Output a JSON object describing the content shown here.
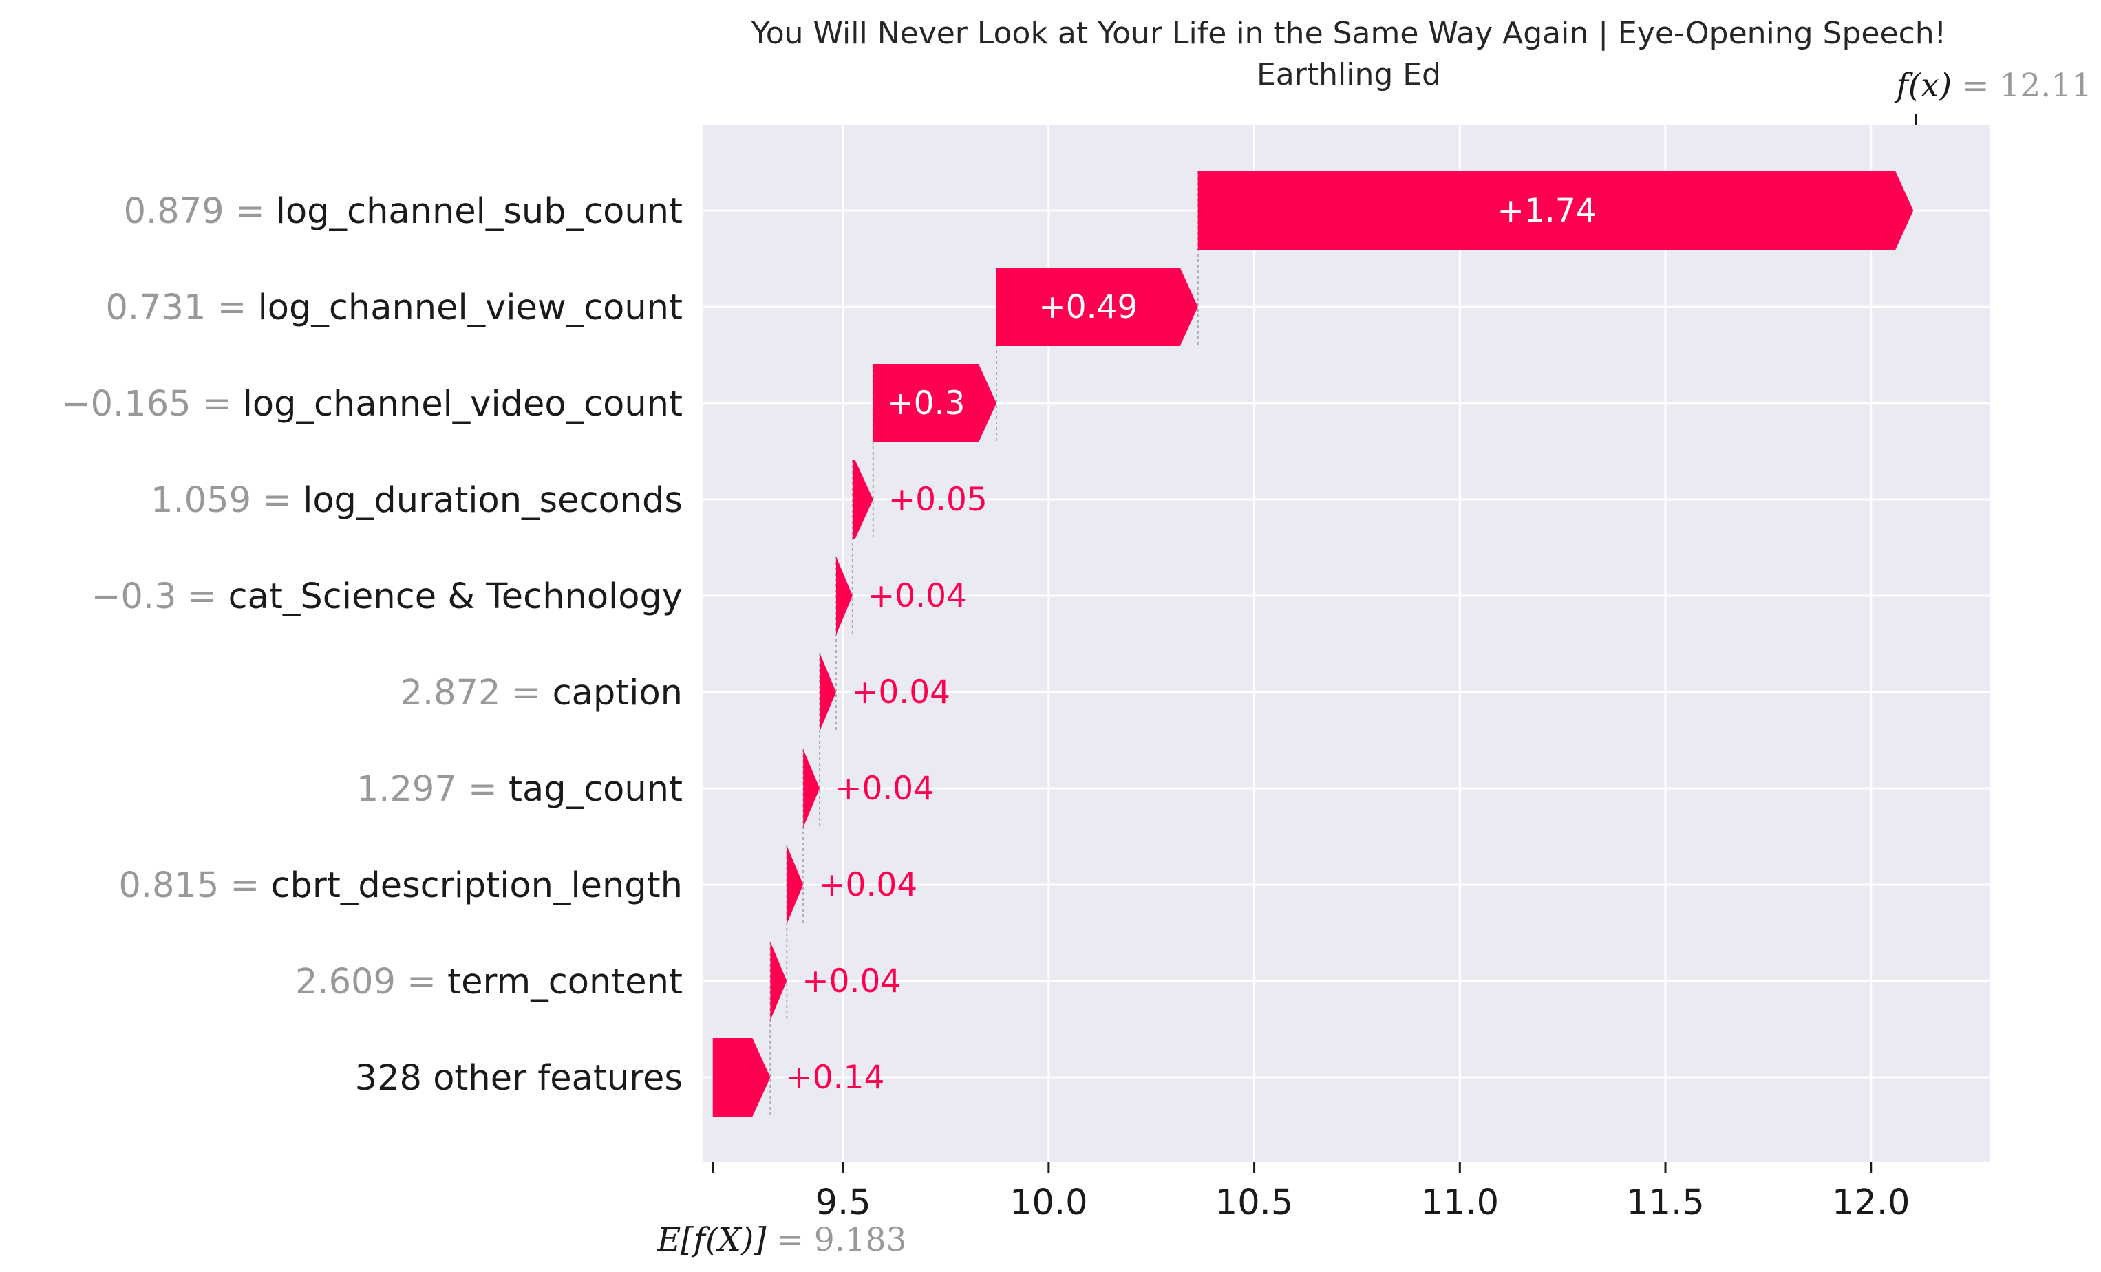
{
  "chart_data": {
    "type": "waterfall",
    "title_line1": "You Will Never Look at Your Life in the Same Way Again | Eye-Opening Speech!",
    "title_line2": "Earthling Ed",
    "base_value": 9.183,
    "base_label_var": "E[f(X)]",
    "base_label_val": "= 9.183",
    "output_value": 12.11,
    "output_label_var": "f(x)",
    "output_label_val": "= 12.11",
    "features": [
      {
        "value_text": "0.879 =",
        "name": "log_channel_sub_count",
        "contribution": 1.74,
        "label": "+1.74"
      },
      {
        "value_text": "0.731 =",
        "name": "log_channel_view_count",
        "contribution": 0.49,
        "label": "+0.49"
      },
      {
        "value_text": "−0.165 =",
        "name": "log_channel_video_count",
        "contribution": 0.3,
        "label": "+0.3"
      },
      {
        "value_text": "1.059 =",
        "name": "log_duration_seconds",
        "contribution": 0.05,
        "label": "+0.05"
      },
      {
        "value_text": "−0.3 =",
        "name": "cat_Science & Technology",
        "contribution": 0.04,
        "label": "+0.04"
      },
      {
        "value_text": "2.872 =",
        "name": "caption",
        "contribution": 0.04,
        "label": "+0.04"
      },
      {
        "value_text": "1.297 =",
        "name": "tag_count",
        "contribution": 0.04,
        "label": "+0.04"
      },
      {
        "value_text": "0.815 =",
        "name": "cbrt_description_length",
        "contribution": 0.04,
        "label": "+0.04"
      },
      {
        "value_text": "2.609 =",
        "name": "term_content",
        "contribution": 0.04,
        "label": "+0.04"
      },
      {
        "value_text": "",
        "name": "328 other features",
        "contribution": 0.14,
        "label": "+0.14"
      }
    ],
    "x_ticks": [
      "9.5",
      "10.0",
      "10.5",
      "11.0",
      "11.5",
      "12.0"
    ],
    "x_tick_values": [
      9.5,
      10.0,
      10.5,
      11.0,
      11.5,
      12.0
    ],
    "xlim": [
      9.16,
      12.29
    ],
    "grid": true,
    "colors": {
      "positive": "#ff0051",
      "background": "#eaeaf2",
      "grid": "#ffffff",
      "value_text": "#999999",
      "label_text": "#1a1a1a"
    }
  }
}
